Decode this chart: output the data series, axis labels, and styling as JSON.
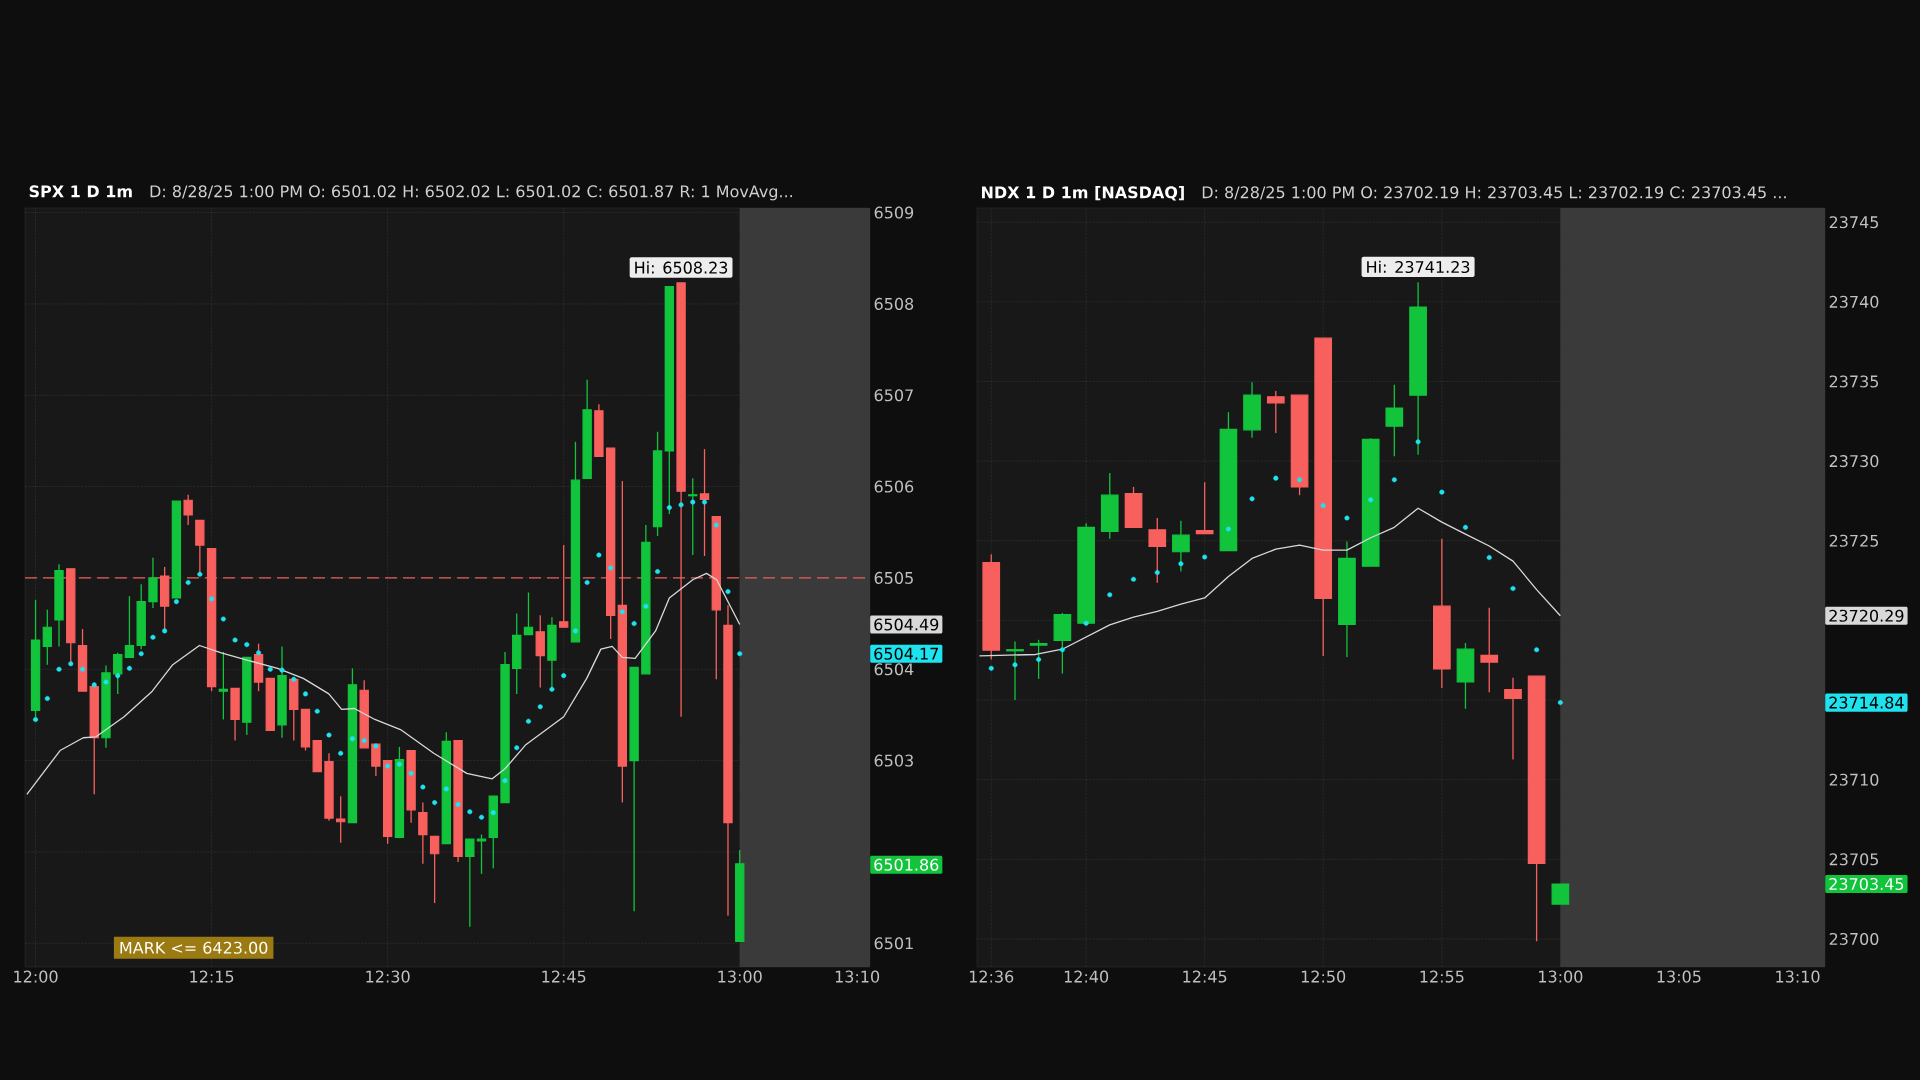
{
  "chart_data": [
    {
      "type": "candlestick",
      "title": "SPX 1 D 1m",
      "subtitle": "D: 8/28/25 1:00 PM   O: 6501.02   H: 6502.02   L: 6501.02   C: 6501.87   R: 1   MovAvg...",
      "x": [
        12.0,
        12.0167,
        12.0333,
        12.05,
        12.0667,
        12.0833,
        12.1,
        12.1167,
        12.1333,
        12.15,
        12.1667,
        12.1833,
        12.2,
        12.2167,
        12.2333,
        12.25,
        12.2667,
        12.2833,
        12.3,
        12.3167,
        12.3333,
        12.35,
        12.3667,
        12.3833,
        12.4,
        12.4167,
        12.4333,
        12.45,
        12.4667,
        12.4833,
        12.5,
        12.5167,
        12.5333,
        12.55,
        12.5667,
        12.5833,
        12.6,
        12.6167,
        12.6333,
        12.65,
        12.6667,
        12.6833,
        12.7,
        12.7167,
        12.7333,
        12.75,
        12.7667,
        12.7833,
        12.8,
        12.8167,
        12.8333,
        12.85,
        12.8667,
        12.8833,
        12.9,
        12.9167,
        12.9333,
        12.95,
        12.9667,
        12.9833,
        13.0
      ],
      "ohlc": [
        [
          6503.55,
          6504.76,
          6503.45,
          6504.32
        ],
        [
          6504.25,
          6504.65,
          6504.05,
          6504.46
        ],
        [
          6504.54,
          6505.15,
          6504.25,
          6505.08
        ],
        [
          6505.1,
          6505.1,
          6504.08,
          6504.29
        ],
        [
          6504.26,
          6504.44,
          6503.76,
          6503.76
        ],
        [
          6503.81,
          6503.81,
          6502.63,
          6503.25
        ],
        [
          6503.25,
          6504.04,
          6503.14,
          6503.96
        ],
        [
          6503.95,
          6504.18,
          6503.73,
          6504.16
        ],
        [
          6504.13,
          6504.8,
          6504.13,
          6504.26
        ],
        [
          6504.26,
          6504.93,
          6504.22,
          6504.74
        ],
        [
          6504.74,
          6505.22,
          6504.67,
          6505.0
        ],
        [
          6505.02,
          6505.12,
          6504.44,
          6504.69
        ],
        [
          6504.78,
          6505.84,
          6504.78,
          6505.84
        ],
        [
          6505.85,
          6505.91,
          6505.58,
          6505.69
        ],
        [
          6505.63,
          6505.63,
          6505.04,
          6505.36
        ],
        [
          6505.32,
          6505.32,
          6503.76,
          6503.81
        ],
        [
          6503.76,
          6504.19,
          6503.45,
          6503.78
        ],
        [
          6503.79,
          6503.79,
          6503.22,
          6503.45
        ],
        [
          6503.42,
          6504.13,
          6503.28,
          6504.13
        ],
        [
          6504.16,
          6504.28,
          6503.76,
          6503.86
        ],
        [
          6503.9,
          6503.9,
          6503.33,
          6503.33
        ],
        [
          6503.39,
          6504.25,
          6503.25,
          6503.93
        ],
        [
          6503.89,
          6503.89,
          6503.22,
          6503.56
        ],
        [
          6503.56,
          6503.56,
          6503.11,
          6503.15
        ],
        [
          6503.22,
          6503.22,
          6502.88,
          6502.88
        ],
        [
          6502.99,
          6503.08,
          6502.34,
          6502.37
        ],
        [
          6502.36,
          6502.61,
          6502.1,
          6502.33
        ],
        [
          6502.32,
          6504.01,
          6502.32,
          6503.83
        ],
        [
          6503.77,
          6503.88,
          6503.14,
          6503.14
        ],
        [
          6503.18,
          6503.18,
          6502.83,
          6502.94
        ],
        [
          6503.0,
          6503.0,
          6502.09,
          6502.17
        ],
        [
          6502.16,
          6503.15,
          6502.15,
          6503.01
        ],
        [
          6503.11,
          6503.11,
          6502.32,
          6502.46
        ],
        [
          6502.43,
          6502.54,
          6501.87,
          6502.19
        ],
        [
          6502.17,
          6502.17,
          6501.44,
          6501.98
        ],
        [
          6502.09,
          6503.31,
          6502.09,
          6503.21
        ],
        [
          6503.22,
          6503.22,
          6501.89,
          6501.95
        ],
        [
          6501.95,
          6502.14,
          6501.18,
          6502.14
        ],
        [
          6502.12,
          6502.19,
          6501.76,
          6502.14
        ],
        [
          6502.16,
          6502.61,
          6501.82,
          6502.61
        ],
        [
          6502.54,
          6504.19,
          6502.54,
          6504.05
        ],
        [
          6504.01,
          6504.61,
          6503.73,
          6504.37
        ],
        [
          6504.38,
          6504.84,
          6504.38,
          6504.46
        ],
        [
          6504.41,
          6504.59,
          6503.8,
          6504.15
        ],
        [
          6504.1,
          6504.57,
          6503.79,
          6504.48
        ],
        [
          6504.52,
          6505.36,
          6504.46,
          6504.46
        ],
        [
          6504.3,
          6506.49,
          6504.3,
          6506.07
        ],
        [
          6506.09,
          6507.17,
          6506.09,
          6506.84
        ],
        [
          6506.83,
          6506.9,
          6506.33,
          6506.33
        ],
        [
          6506.42,
          6506.42,
          6504.33,
          6504.59
        ],
        [
          6504.7,
          6506.06,
          6502.54,
          6502.94
        ],
        [
          6503.0,
          6504.02,
          6501.35,
          6504.02
        ],
        [
          6503.95,
          6505.58,
          6503.95,
          6505.39
        ],
        [
          6505.56,
          6506.6,
          6505.46,
          6506.39
        ],
        [
          6506.39,
          6508.19,
          6505.7,
          6508.19
        ],
        [
          6508.23,
          6508.23,
          6503.48,
          6505.95
        ],
        [
          6505.9,
          6506.09,
          6505.25,
          6505.91
        ],
        [
          6505.92,
          6506.41,
          6505.24,
          6505.86
        ],
        [
          6505.67,
          6505.67,
          6503.89,
          6504.65
        ],
        [
          6504.48,
          6504.7,
          6501.3,
          6502.32
        ],
        [
          6501.02,
          6502.02,
          6501.02,
          6501.87
        ]
      ],
      "series": [
        {
          "type": "line",
          "color": "#d8d8d8",
          "x": [
            11.9877,
            12.0348,
            12.0677,
            12.0858,
            12.1257,
            12.1657,
            12.1948,
            12.2327,
            12.2638,
            12.3002,
            12.3438,
            12.3802,
            12.4165,
            12.4347,
            12.4528,
            12.4818,
            12.5182,
            12.5655,
            12.6123,
            12.6485,
            12.6667,
            12.6957,
            12.75,
            12.7827,
            12.8028,
            12.8188,
            12.8333,
            12.8515,
            12.8805,
            12.9,
            12.9333,
            12.9528,
            12.9673,
            13.0
          ],
          "values": [
            6502.63,
            6503.11,
            6503.25,
            6503.26,
            6503.48,
            6503.76,
            6504.05,
            6504.26,
            6504.18,
            6504.1,
            6504.01,
            6503.9,
            6503.73,
            6503.56,
            6503.57,
            6503.45,
            6503.34,
            6503.08,
            6502.86,
            6502.8,
            6502.91,
            6503.17,
            6503.48,
            6503.9,
            6504.22,
            6504.25,
            6504.13,
            6504.12,
            6504.42,
            6504.78,
            6504.98,
            6505.05,
            6504.98,
            6504.49
          ]
        },
        {
          "type": "scatter",
          "color": "#1ee3ef",
          "values": [
            6503.45,
            6503.68,
            6504.0,
            6504.06,
            6504.0,
            6503.83,
            6503.86,
            6503.93,
            6504.01,
            6504.17,
            6504.35,
            6504.42,
            6504.74,
            6504.95,
            6505.04,
            6504.77,
            6504.55,
            6504.32,
            6504.27,
            6504.18,
            6504.0,
            6503.99,
            6503.89,
            6503.73,
            6503.54,
            6503.28,
            6503.08,
            6503.24,
            6503.22,
            6503.16,
            6502.94,
            6502.96,
            6502.86,
            6502.71,
            6502.54,
            6502.69,
            6502.52,
            6502.44,
            6502.38,
            6502.43,
            6502.78,
            6503.14,
            6503.43,
            6503.59,
            6503.78,
            6503.93,
            6504.42,
            6504.95,
            6505.25,
            6505.11,
            6504.63,
            6504.5,
            6504.69,
            6505.07,
            6505.77,
            6505.8,
            6505.83,
            6505.83,
            6505.58,
            6504.85,
            6504.17
          ]
        }
      ],
      "xlim": [
        11.985,
        13.185
      ],
      "xticks": [
        {
          "value": 12.0,
          "label": "12:00"
        },
        {
          "value": 12.25,
          "label": "12:15"
        },
        {
          "value": 12.5,
          "label": "12:30"
        },
        {
          "value": 12.75,
          "label": "12:45"
        },
        {
          "value": 13.0,
          "label": "13:00"
        },
        {
          "value": 13.1667,
          "label": "13:10"
        }
      ],
      "ylim": [
        6500.74,
        6509.05
      ],
      "yticks": [
        6501,
        {
          "value": 6502,
          "label": null
        },
        6503,
        6504,
        6505,
        6506,
        6507,
        6508,
        6509
      ],
      "grid": true,
      "ref_lines": [
        {
          "axis": "y",
          "value": 6505,
          "color": "#e8605c",
          "line_style": "dashed"
        }
      ],
      "bands": [
        {
          "axis": "x",
          "from": 13.0,
          "to": 13.185,
          "color": "#3a3a3a"
        }
      ],
      "annotations": [
        {
          "text": "Hi: 6508.23",
          "x": 12.9167,
          "y": 6508.23
        },
        {
          "text": "6504.49",
          "x": 13.185,
          "y": 6504.49
        },
        {
          "text": "6504.17",
          "x": 13.185,
          "y": 6504.17
        },
        {
          "text": "6501.86",
          "x": 13.185,
          "y": 6501.86
        },
        "MARK <= 6423.00"
      ]
    },
    {
      "type": "candlestick",
      "title": "NDX 1 D 1m [NASDAQ]",
      "subtitle": "D: 8/28/25 1:00 PM   O: 23702.19   H: 23703.45   L: 23702.19   C: 23703.45 ...",
      "x": [
        12.6,
        12.6167,
        12.6333,
        12.65,
        12.6667,
        12.6833,
        12.7,
        12.7167,
        12.7333,
        12.75,
        12.7667,
        12.7833,
        12.8,
        12.8167,
        12.8333,
        12.85,
        12.8667,
        12.8833,
        12.9,
        12.9167,
        12.9333,
        12.95,
        12.9667,
        12.9833,
        13.0
      ],
      "ohlc": [
        [
          23723.63,
          23724.15,
          23717.54,
          23718.13
        ],
        [
          23718.09,
          23718.68,
          23715.0,
          23718.16
        ],
        [
          23718.45,
          23718.78,
          23716.33,
          23718.55
        ],
        [
          23718.74,
          23720.47,
          23716.66,
          23720.37
        ],
        [
          23719.82,
          23726.1,
          23719.82,
          23725.84
        ],
        [
          23725.58,
          23729.26,
          23725.12,
          23727.86
        ],
        [
          23727.96,
          23728.38,
          23725.84,
          23725.84
        ],
        [
          23725.68,
          23726.43,
          23722.36,
          23724.64
        ],
        [
          23724.31,
          23726.26,
          23723.07,
          23725.35
        ],
        [
          23725.64,
          23728.67,
          23725.45,
          23725.45
        ],
        [
          23724.38,
          23733.07,
          23724.38,
          23731.99
        ],
        [
          23731.96,
          23734.95,
          23731.47,
          23734.14
        ],
        [
          23734.04,
          23734.4,
          23731.76,
          23733.65
        ],
        [
          23734.14,
          23734.14,
          23727.86,
          23728.38
        ],
        [
          23737.72,
          23737.72,
          23717.77,
          23721.38
        ],
        [
          23719.75,
          23724.96,
          23717.7,
          23723.89
        ],
        [
          23723.4,
          23731.44,
          23723.4,
          23731.37
        ],
        [
          23732.19,
          23734.79,
          23730.3,
          23733.33
        ],
        [
          23734.14,
          23741.23,
          23730.4,
          23739.67
        ],
        [
          23720.89,
          23725.12,
          23715.75,
          23716.95
        ],
        [
          23716.14,
          23718.58,
          23714.45,
          23718.19
        ],
        [
          23717.8,
          23720.79,
          23715.49,
          23717.38
        ],
        [
          23715.65,
          23716.4,
          23711.26,
          23715.1
        ],
        [
          23716.5,
          23716.5,
          23699.86,
          23704.75
        ],
        [
          23702.19,
          23703.45,
          23702.19,
          23703.45
        ]
      ],
      "series": [
        {
          "type": "line",
          "color": "#d8d8d8",
          "x": [
            12.5917,
            12.63125,
            12.65,
            12.6833,
            12.7,
            12.7167,
            12.7333,
            12.75,
            12.7667,
            12.7833,
            12.8,
            12.8167,
            12.8333,
            12.85,
            12.8667,
            12.8833,
            12.9,
            12.9167,
            12.9333,
            12.95,
            12.9667,
            12.9833,
            13.0
          ],
          "values": [
            23717.77,
            23717.86,
            23718.19,
            23719.72,
            23720.21,
            23720.57,
            23721.02,
            23721.41,
            23722.75,
            23723.89,
            23724.47,
            23724.73,
            23724.41,
            23724.41,
            23725.19,
            23725.84,
            23727.04,
            23726.17,
            23725.42,
            23724.67,
            23723.72,
            23721.93,
            23720.29
          ]
        },
        {
          "type": "scatter",
          "color": "#1ee3ef",
          "values": [
            23716.99,
            23717.21,
            23717.54,
            23718.16,
            23719.82,
            23721.61,
            23722.58,
            23723.01,
            23723.56,
            23723.98,
            23725.74,
            23727.63,
            23728.93,
            23728.83,
            23727.21,
            23726.43,
            23727.57,
            23728.83,
            23731.21,
            23728.05,
            23725.84,
            23723.95,
            23722.0,
            23718.16,
            23714.84
          ]
        }
      ],
      "xlim": [
        12.59,
        13.186
      ],
      "xticks": [
        {
          "value": 12.6,
          "label": "12:36"
        },
        {
          "value": 12.6667,
          "label": "12:40"
        },
        {
          "value": 12.75,
          "label": "12:45"
        },
        {
          "value": 12.8333,
          "label": "12:50"
        },
        {
          "value": 12.9167,
          "label": "12:55"
        },
        {
          "value": 13.0,
          "label": "13:00"
        },
        {
          "value": 13.0833,
          "label": "13:05"
        },
        {
          "value": 13.1667,
          "label": "13:10"
        }
      ],
      "ylim": [
        23698.24,
        23745.89
      ],
      "yticks": [
        23700,
        23705,
        23710,
        {
          "value": 23715,
          "label": null
        },
        {
          "value": 23720,
          "label": null
        },
        23725,
        23730,
        23735,
        23740,
        23745
      ],
      "grid": true,
      "bands": [
        {
          "axis": "x",
          "from": 13.0,
          "to": 13.186,
          "color": "#3a3a3a"
        }
      ],
      "annotations": [
        {
          "text": "Hi: 23741.23",
          "x": 12.9,
          "y": 23741.23
        },
        {
          "text": "23720.29",
          "x": 13.186,
          "y": 23720.29
        },
        {
          "text": "23714.84",
          "x": 13.186,
          "y": 23714.84
        },
        {
          "text": "23703.45",
          "x": 13.186,
          "y": 23703.45
        }
      ]
    }
  ]
}
